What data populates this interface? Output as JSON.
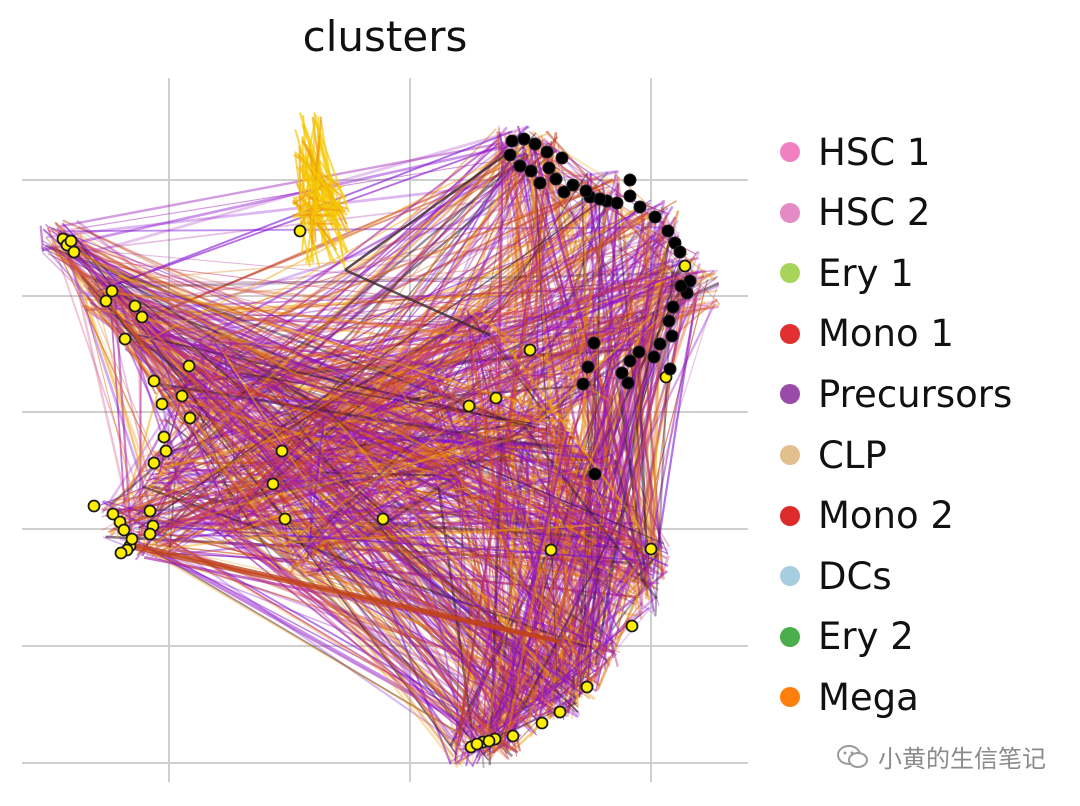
{
  "chart_data": {
    "type": "scatter",
    "title": "clusters",
    "xlabel": "",
    "ylabel": "",
    "grid": true,
    "legend_position": "right",
    "legend": [
      {
        "name": "HSC 1",
        "color": "#f080c0"
      },
      {
        "name": "HSC 2",
        "color": "#e48ac4"
      },
      {
        "name": "Ery 1",
        "color": "#a8d45a"
      },
      {
        "name": "Mono 1",
        "color": "#e03030"
      },
      {
        "name": "Precursors",
        "color": "#9a4aa8"
      },
      {
        "name": "CLP",
        "color": "#e2c08e"
      },
      {
        "name": "Mono 2",
        "color": "#dd2a2a"
      },
      {
        "name": "DCs",
        "color": "#a8cde0"
      },
      {
        "name": "Ery 2",
        "color": "#4aae4a"
      },
      {
        "name": "Mega",
        "color": "#ff7f0e"
      }
    ],
    "highlight_yellow": [
      [
        63,
        239
      ],
      [
        67,
        245
      ],
      [
        74,
        252
      ],
      [
        71,
        241
      ],
      [
        106,
        301
      ],
      [
        112,
        291
      ],
      [
        135,
        306
      ],
      [
        142,
        317
      ],
      [
        125,
        339
      ],
      [
        189,
        366
      ],
      [
        154,
        381
      ],
      [
        182,
        396
      ],
      [
        162,
        404
      ],
      [
        190,
        418
      ],
      [
        164,
        437
      ],
      [
        166,
        451
      ],
      [
        154,
        463
      ],
      [
        94,
        506
      ],
      [
        113,
        514
      ],
      [
        120,
        522
      ],
      [
        124,
        530
      ],
      [
        130,
        546
      ],
      [
        127,
        550
      ],
      [
        121,
        553
      ],
      [
        132,
        539
      ],
      [
        150,
        511
      ],
      [
        153,
        526
      ],
      [
        150,
        534
      ],
      [
        282,
        451
      ],
      [
        273,
        484
      ],
      [
        285,
        519
      ],
      [
        383,
        519
      ],
      [
        300,
        231
      ],
      [
        469,
        406
      ],
      [
        496,
        398
      ],
      [
        530,
        350
      ],
      [
        551,
        550
      ],
      [
        651,
        549
      ],
      [
        632,
        626
      ],
      [
        587,
        687
      ],
      [
        560,
        712
      ],
      [
        542,
        723
      ],
      [
        513,
        736
      ],
      [
        495,
        739
      ],
      [
        483,
        742
      ],
      [
        471,
        747
      ],
      [
        477,
        744
      ],
      [
        489,
        741
      ],
      [
        685,
        266
      ],
      [
        666,
        377
      ]
    ],
    "highlight_black": [
      [
        512,
        141
      ],
      [
        524,
        139
      ],
      [
        535,
        144
      ],
      [
        547,
        152
      ],
      [
        510,
        155
      ],
      [
        520,
        166
      ],
      [
        531,
        171
      ],
      [
        540,
        183
      ],
      [
        556,
        179
      ],
      [
        564,
        192
      ],
      [
        573,
        185
      ],
      [
        590,
        197
      ],
      [
        607,
        201
      ],
      [
        617,
        203
      ],
      [
        630,
        180
      ],
      [
        630,
        196
      ],
      [
        640,
        207
      ],
      [
        655,
        217
      ],
      [
        668,
        231
      ],
      [
        675,
        243
      ],
      [
        680,
        252
      ],
      [
        690,
        281
      ],
      [
        687,
        293
      ],
      [
        673,
        307
      ],
      [
        669,
        321
      ],
      [
        672,
        336
      ],
      [
        660,
        344
      ],
      [
        654,
        357
      ],
      [
        639,
        352
      ],
      [
        630,
        361
      ],
      [
        622,
        373
      ],
      [
        628,
        383
      ],
      [
        670,
        369
      ],
      [
        588,
        367
      ],
      [
        583,
        384
      ],
      [
        594,
        343
      ],
      [
        595,
        474
      ],
      [
        549,
        168
      ],
      [
        562,
        158
      ],
      [
        586,
        191
      ],
      [
        600,
        199
      ],
      [
        681,
        286
      ]
    ]
  },
  "watermark": {
    "text": "小黄的生信笔记"
  }
}
